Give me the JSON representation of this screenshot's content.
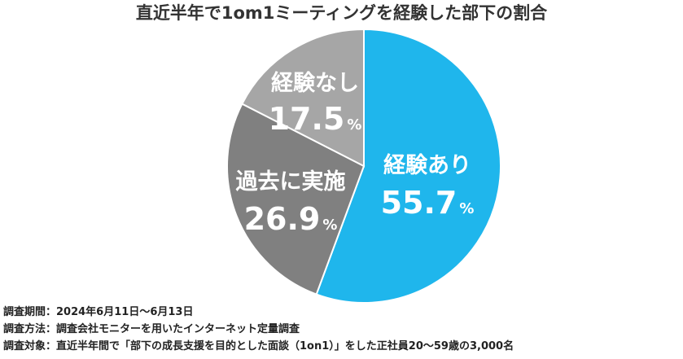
{
  "chart_data": {
    "type": "pie",
    "title": "直近半年で1om1ミーティングを経験した部下の割合",
    "categories": [
      "経験あり",
      "過去に実施",
      "経験なし"
    ],
    "values": [
      55.7,
      26.9,
      17.5
    ],
    "value_suffix": "%",
    "colors": [
      "#1fb6ec",
      "#808080",
      "#a6a6a6"
    ]
  },
  "notes": [
    "調査期間：2024年6月11日〜6月13日",
    "調査方法：調査会社モニターを用いたインターネット定量調査",
    "調査対象：直近半年間で「部下の成長支援を目的とした面談（1on1）」をした正社員20〜59歳の3,000名"
  ]
}
